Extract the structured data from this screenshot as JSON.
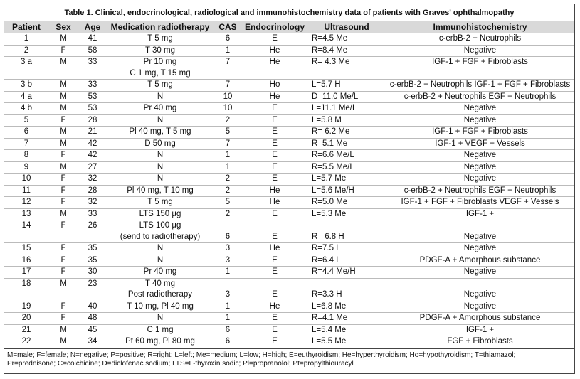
{
  "title": "Table 1. Clinical, endocrinological, radiological and immunohistochemistry data of patients with Graves' ophthalmopathy",
  "table": {
    "headers": [
      "Patient",
      "Sex",
      "Age",
      "Medication radiotherapy",
      "CAS",
      "Endocrinology",
      "Ultrasound",
      "Immunohistochemistry"
    ],
    "rows": [
      [
        "1",
        "M",
        41,
        [
          "T 5 mg"
        ],
        6,
        "E",
        "R=4.5 Me",
        "c-erbB-2 + Neutrophils"
      ],
      [
        "2",
        "F",
        58,
        [
          "T 30 mg"
        ],
        1,
        "He",
        "R=8.4 Me",
        "Negative"
      ],
      [
        "3 a",
        "M",
        33,
        [
          "Pr 10 mg",
          "C 1 mg, T 15 mg"
        ],
        7,
        "He",
        "R= 4.3 Me",
        "IGF-1 + FGF + Fibroblasts"
      ],
      [
        "3 b",
        "M",
        33,
        [
          "T 5 mg"
        ],
        7,
        "Ho",
        "L=5.7 H",
        "c-erbB-2 + Neutrophils IGF-1 + FGF + Fibroblasts"
      ],
      [
        "4 a",
        "M",
        53,
        [
          "N"
        ],
        10,
        "He",
        "D=11.0 Me/L",
        "c-erbB-2 + Neutrophils EGF + Neutrophils"
      ],
      [
        "4 b",
        "M",
        53,
        [
          "Pr 40 mg"
        ],
        10,
        "E",
        "L=11.1 Me/L",
        "Negative"
      ],
      [
        "5",
        "F",
        28,
        [
          "N"
        ],
        2,
        "E",
        "L=5.8 M",
        "Negative"
      ],
      [
        "6",
        "M",
        21,
        [
          "Pl 40 mg, T 5 mg"
        ],
        5,
        "E",
        "R= 6.2 Me",
        "IGF-1 + FGF + Fibroblasts"
      ],
      [
        "7",
        "M",
        42,
        [
          "D 50 mg"
        ],
        7,
        "E",
        "R=5.1 Me",
        "IGF-1 + VEGF + Vessels"
      ],
      [
        "8",
        "F",
        42,
        [
          "N"
        ],
        1,
        "E",
        "R=6.6 Me/L",
        "Negative"
      ],
      [
        "9",
        "M",
        27,
        [
          "N"
        ],
        1,
        "E",
        "R=5.5 Me/L",
        "Negative"
      ],
      [
        "10",
        "F",
        32,
        [
          "N"
        ],
        2,
        "E",
        "L=5.7 Me",
        "Negative"
      ],
      [
        "11",
        "F",
        28,
        [
          "Pl 40 mg, T 10 mg"
        ],
        2,
        "He",
        "L=5.6 Me/H",
        "c-erbB-2 + Neutrophils EGF + Neutrophils"
      ],
      [
        "12",
        "F",
        32,
        [
          "T 5 mg"
        ],
        5,
        "He",
        "R=5.0 Me",
        "IGF-1 + FGF + Fibroblasts VEGF + Vessels"
      ],
      [
        "13",
        "M",
        33,
        [
          "LTS 150 µg"
        ],
        2,
        "E",
        "L=5.3 Me",
        "IGF-1 +"
      ],
      [
        "14",
        "F",
        26,
        [
          "LTS 100 µg",
          "(send to radiotherapy)"
        ],
        6,
        "E",
        "R= 6.8 H",
        "Negative"
      ],
      [
        "15",
        "F",
        35,
        [
          "N"
        ],
        3,
        "He",
        "R=7.5 L",
        "Negative"
      ],
      [
        "16",
        "F",
        35,
        [
          "N"
        ],
        3,
        "E",
        "R=6.4 L",
        "PDGF-A + Amorphous substance"
      ],
      [
        "17",
        "F",
        30,
        [
          "Pr 40 mg"
        ],
        1,
        "E",
        "R=4.4 Me/H",
        "Negative"
      ],
      [
        "18",
        "M",
        23,
        [
          "T 40 mg",
          "Post radiotherapy"
        ],
        3,
        "E",
        "R=3.3 H",
        "Negative"
      ],
      [
        "19",
        "F",
        40,
        [
          "T 10 mg, Pl 40 mg"
        ],
        1,
        "He",
        "L=6.8 Me",
        "Negative"
      ],
      [
        "20",
        "F",
        48,
        [
          "N"
        ],
        1,
        "E",
        "R=4.1 Me",
        "PDGF-A + Amorphous substance"
      ],
      [
        "21",
        "M",
        45,
        [
          "C 1 mg"
        ],
        6,
        "E",
        "L=5.4 Me",
        "IGF-1 +"
      ],
      [
        "22",
        "M",
        34,
        [
          "Pt 60 mg, Pl 80 mg"
        ],
        6,
        "E",
        "L=5.5 Me",
        "FGF + Fibroblasts"
      ]
    ]
  },
  "footnote": [
    "M=male; F=female; N=negative; P=positive; R=right; L=left; Me=medium; L=low; H=high; E=euthyroidism; He=hyperthyroidism; Ho=hypothyroidism; T=thiamazol;",
    "Pr=prednisone; C=colchicine; D=diclofenac sodium; LTS=L-thyroxin sodic; Pl=propranolol; Pt=propylthiouracyl"
  ]
}
